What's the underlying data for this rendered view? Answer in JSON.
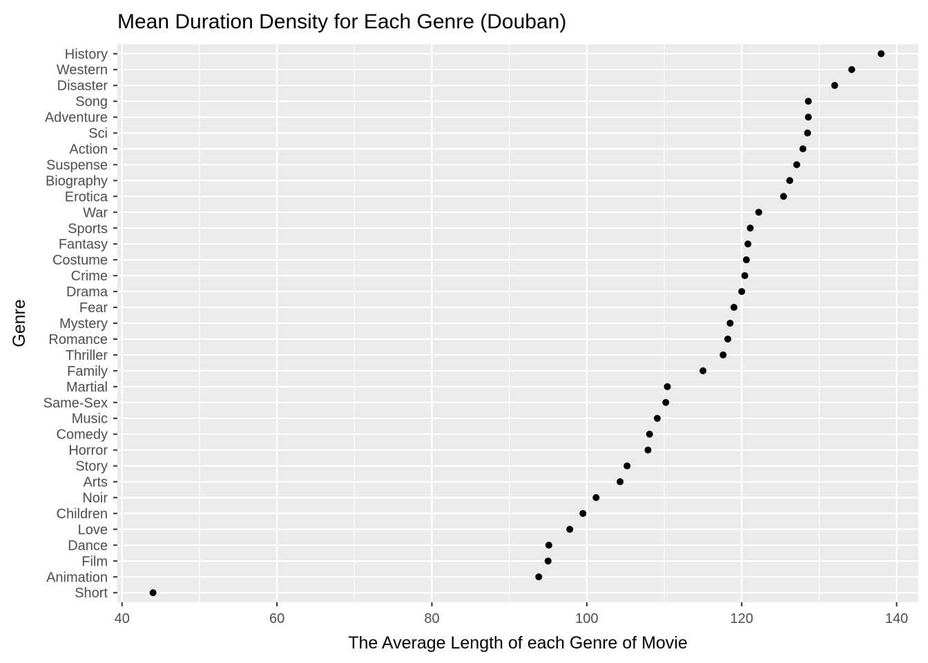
{
  "chart_data": {
    "type": "scatter",
    "title": "Mean Duration Density for Each Genre (Douban)",
    "xlabel": "The Average Length of each Genre of Movie",
    "ylabel": "Genre",
    "xlim": [
      39.4,
      142.8
    ],
    "xticks": [
      40,
      60,
      80,
      100,
      120,
      140
    ],
    "grid": true,
    "legend": "none",
    "colors": {
      "panel": "#EBEBEB",
      "grid": "#FFFFFF",
      "point": "#000000",
      "tick": "#4D4D4D"
    },
    "points": [
      {
        "genre": "History",
        "value": 138.0
      },
      {
        "genre": "Western",
        "value": 134.2
      },
      {
        "genre": "Disaster",
        "value": 132.0
      },
      {
        "genre": "Song",
        "value": 128.6
      },
      {
        "genre": "Adventure",
        "value": 128.6
      },
      {
        "genre": "Sci",
        "value": 128.5
      },
      {
        "genre": "Action",
        "value": 127.9
      },
      {
        "genre": "Suspense",
        "value": 127.1
      },
      {
        "genre": "Biography",
        "value": 126.2
      },
      {
        "genre": "Erotica",
        "value": 125.4
      },
      {
        "genre": "War",
        "value": 122.2
      },
      {
        "genre": "Sports",
        "value": 121.1
      },
      {
        "genre": "Fantasy",
        "value": 120.8
      },
      {
        "genre": "Costume",
        "value": 120.6
      },
      {
        "genre": "Crime",
        "value": 120.4
      },
      {
        "genre": "Drama",
        "value": 120.0
      },
      {
        "genre": "Fear",
        "value": 119.0
      },
      {
        "genre": "Mystery",
        "value": 118.5
      },
      {
        "genre": "Romance",
        "value": 118.2
      },
      {
        "genre": "Thriller",
        "value": 117.6
      },
      {
        "genre": "Family",
        "value": 115.0
      },
      {
        "genre": "Martial",
        "value": 110.4
      },
      {
        "genre": "Same-Sex",
        "value": 110.2
      },
      {
        "genre": "Music",
        "value": 109.1
      },
      {
        "genre": "Comedy",
        "value": 108.1
      },
      {
        "genre": "Horror",
        "value": 107.9
      },
      {
        "genre": "Story",
        "value": 105.2
      },
      {
        "genre": "Arts",
        "value": 104.3
      },
      {
        "genre": "Noir",
        "value": 101.2
      },
      {
        "genre": "Children",
        "value": 99.5
      },
      {
        "genre": "Love",
        "value": 97.8
      },
      {
        "genre": "Dance",
        "value": 95.1
      },
      {
        "genre": "Film",
        "value": 95.0
      },
      {
        "genre": "Animation",
        "value": 93.8
      },
      {
        "genre": "Short",
        "value": 44.0
      }
    ]
  }
}
